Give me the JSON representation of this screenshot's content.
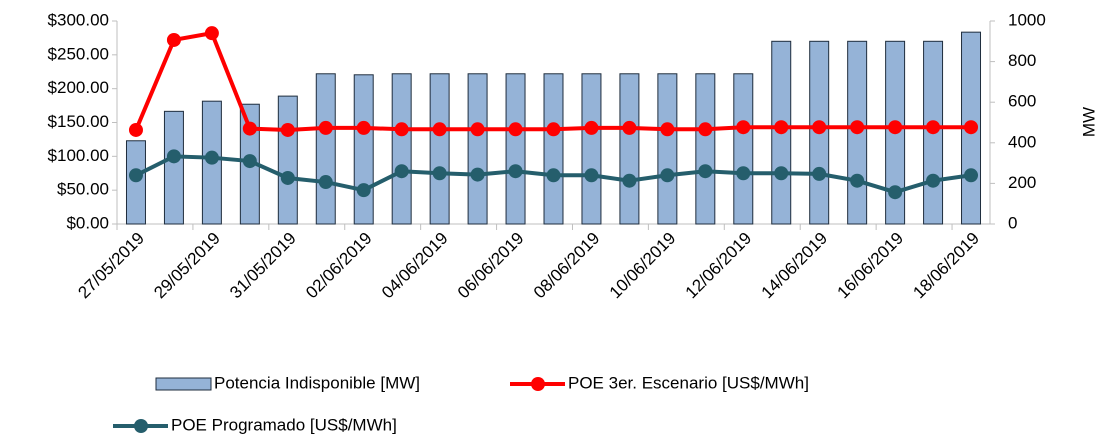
{
  "chart_data": {
    "type": "bar-line",
    "categories": [
      "27/05/2019",
      null,
      "29/05/2019",
      null,
      "31/05/2019",
      null,
      "02/06/2019",
      null,
      "04/06/2019",
      null,
      "06/06/2019",
      null,
      "08/06/2019",
      null,
      "10/06/2019",
      null,
      "12/06/2019",
      null,
      "14/06/2019",
      null,
      "16/06/2019",
      null,
      "18/06/2019"
    ],
    "series": [
      {
        "name": "Potencia Indisponible [MW]",
        "kind": "bar",
        "axis": "y2",
        "color": "#95b3d7",
        "values": [
          410,
          555,
          605,
          590,
          630,
          740,
          735,
          740,
          740,
          740,
          740,
          740,
          740,
          740,
          740,
          740,
          740,
          900,
          900,
          900,
          900,
          900,
          945
        ]
      },
      {
        "name": "POE 3er. Escenario [US$/MWh]",
        "kind": "line",
        "axis": "y",
        "color": "#ff0000",
        "values": [
          139,
          272,
          282,
          141,
          139,
          142,
          142,
          140,
          140,
          140,
          140,
          140,
          142,
          142,
          140,
          140,
          143,
          143,
          143,
          143,
          143,
          143,
          143
        ]
      },
      {
        "name": "POE Programado [US$/MWh]",
        "kind": "line",
        "axis": "y",
        "color": "#255e6c",
        "values": [
          72,
          100,
          98,
          93,
          68,
          62,
          50,
          78,
          75,
          73,
          78,
          72,
          72,
          64,
          72,
          78,
          75,
          75,
          74,
          64,
          47,
          64,
          72
        ]
      }
    ],
    "ylim": [
      0,
      300
    ],
    "yticks": [
      {
        "value": 0,
        "label": "$0.00"
      },
      {
        "value": 50,
        "label": "$50.00"
      },
      {
        "value": 100,
        "label": "$100.00"
      },
      {
        "value": 150,
        "label": "$150.00"
      },
      {
        "value": 200,
        "label": "$200.00"
      },
      {
        "value": 250,
        "label": "$250.00"
      },
      {
        "value": 300,
        "label": "$300.00"
      }
    ],
    "y2lim": [
      0,
      1000
    ],
    "y2ticks": [
      0,
      200,
      400,
      600,
      800,
      1000
    ],
    "y2label": "MW"
  }
}
